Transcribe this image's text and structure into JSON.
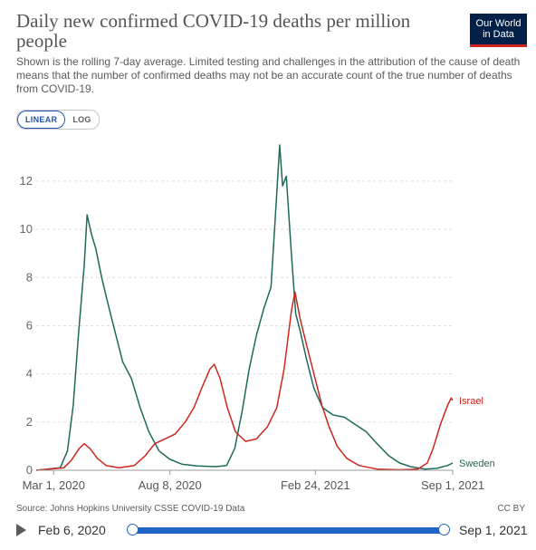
{
  "header": {
    "title": "Daily new confirmed COVID-19 deaths per million people",
    "subtitle": "Shown is the rolling 7-day average. Limited testing and challenges in the attribution of the cause of death means that the number of confirmed deaths may not be an accurate count of the true number of deaths from COVID-19.",
    "logo_line1": "Our World",
    "logo_line2": "in Data"
  },
  "scale_toggle": {
    "linear_label": "LINEAR",
    "log_label": "LOG",
    "selected": "LINEAR"
  },
  "footer": {
    "source": "Source: Johns Hopkins University CSSE COVID-19 Data",
    "license": "CC BY"
  },
  "timeline": {
    "start_label": "Feb 6, 2020",
    "end_label": "Sep 1, 2021",
    "colors": {
      "track": "#1f63c6",
      "play": "#5b5b5b"
    }
  },
  "chart_data": {
    "type": "line",
    "title": "Daily new confirmed COVID-19 deaths per million people",
    "xlabel": "",
    "ylabel": "",
    "xlim": [
      "2020-02-06",
      "2021-09-01"
    ],
    "ylim": [
      0,
      13.5
    ],
    "yticks": [
      0,
      2,
      4,
      6,
      8,
      10,
      12
    ],
    "xticks": [
      {
        "date": "2020-03-01",
        "label": "Mar 1, 2020"
      },
      {
        "date": "2020-08-08",
        "label": "Aug 8, 2020"
      },
      {
        "date": "2021-02-24",
        "label": "Feb 24, 2021"
      },
      {
        "date": "2021-09-01",
        "label": "Sep 1, 2021"
      }
    ],
    "grid": true,
    "legend": "end-of-line labels",
    "series": [
      {
        "name": "Sweden",
        "color": "#1e6a5a",
        "points": [
          [
            "2020-02-06",
            0
          ],
          [
            "2020-03-10",
            0.1
          ],
          [
            "2020-03-20",
            0.8
          ],
          [
            "2020-03-28",
            2.7
          ],
          [
            "2020-04-04",
            5.6
          ],
          [
            "2020-04-12",
            8.5
          ],
          [
            "2020-04-16",
            10.6
          ],
          [
            "2020-04-22",
            9.8
          ],
          [
            "2020-04-28",
            9.2
          ],
          [
            "2020-05-06",
            8.0
          ],
          [
            "2020-05-14",
            7.0
          ],
          [
            "2020-05-24",
            5.8
          ],
          [
            "2020-06-04",
            4.5
          ],
          [
            "2020-06-16",
            3.8
          ],
          [
            "2020-06-28",
            2.6
          ],
          [
            "2020-07-10",
            1.6
          ],
          [
            "2020-07-24",
            0.8
          ],
          [
            "2020-08-08",
            0.45
          ],
          [
            "2020-08-25",
            0.25
          ],
          [
            "2020-09-15",
            0.18
          ],
          [
            "2020-10-10",
            0.15
          ],
          [
            "2020-10-25",
            0.2
          ],
          [
            "2020-11-05",
            0.9
          ],
          [
            "2020-11-15",
            2.4
          ],
          [
            "2020-11-25",
            4.2
          ],
          [
            "2020-12-05",
            5.6
          ],
          [
            "2020-12-15",
            6.7
          ],
          [
            "2020-12-25",
            7.6
          ],
          [
            "2021-01-02",
            11.5
          ],
          [
            "2021-01-06",
            13.5
          ],
          [
            "2021-01-10",
            11.8
          ],
          [
            "2021-01-15",
            12.2
          ],
          [
            "2021-01-22",
            9.0
          ],
          [
            "2021-01-28",
            6.5
          ],
          [
            "2021-02-03",
            5.8
          ],
          [
            "2021-02-12",
            4.6
          ],
          [
            "2021-02-22",
            3.4
          ],
          [
            "2021-03-06",
            2.6
          ],
          [
            "2021-03-20",
            2.3
          ],
          [
            "2021-04-05",
            2.2
          ],
          [
            "2021-04-20",
            1.9
          ],
          [
            "2021-05-05",
            1.6
          ],
          [
            "2021-05-20",
            1.1
          ],
          [
            "2021-06-05",
            0.6
          ],
          [
            "2021-06-20",
            0.3
          ],
          [
            "2021-07-05",
            0.15
          ],
          [
            "2021-07-25",
            0.05
          ],
          [
            "2021-08-10",
            0.08
          ],
          [
            "2021-08-25",
            0.2
          ],
          [
            "2021-09-01",
            0.3
          ]
        ]
      },
      {
        "name": "Israel",
        "color": "#ce261e",
        "points": [
          [
            "2020-02-06",
            0
          ],
          [
            "2020-03-15",
            0.1
          ],
          [
            "2020-03-25",
            0.4
          ],
          [
            "2020-04-05",
            0.9
          ],
          [
            "2020-04-12",
            1.1
          ],
          [
            "2020-04-20",
            0.9
          ],
          [
            "2020-04-30",
            0.5
          ],
          [
            "2020-05-12",
            0.2
          ],
          [
            "2020-05-30",
            0.1
          ],
          [
            "2020-06-20",
            0.2
          ],
          [
            "2020-07-05",
            0.6
          ],
          [
            "2020-07-18",
            1.1
          ],
          [
            "2020-08-01",
            1.3
          ],
          [
            "2020-08-15",
            1.5
          ],
          [
            "2020-08-29",
            2.0
          ],
          [
            "2020-09-10",
            2.6
          ],
          [
            "2020-09-22",
            3.5
          ],
          [
            "2020-10-02",
            4.2
          ],
          [
            "2020-10-08",
            4.4
          ],
          [
            "2020-10-16",
            3.8
          ],
          [
            "2020-10-26",
            2.6
          ],
          [
            "2020-11-06",
            1.6
          ],
          [
            "2020-11-20",
            1.2
          ],
          [
            "2020-12-05",
            1.3
          ],
          [
            "2020-12-20",
            1.8
          ],
          [
            "2021-01-02",
            2.6
          ],
          [
            "2021-01-12",
            4.2
          ],
          [
            "2021-01-22",
            6.6
          ],
          [
            "2021-01-27",
            7.4
          ],
          [
            "2021-02-03",
            6.3
          ],
          [
            "2021-02-12",
            5.2
          ],
          [
            "2021-02-22",
            4.0
          ],
          [
            "2021-03-05",
            2.7
          ],
          [
            "2021-03-15",
            1.8
          ],
          [
            "2021-03-26",
            1.0
          ],
          [
            "2021-04-08",
            0.5
          ],
          [
            "2021-04-25",
            0.2
          ],
          [
            "2021-05-20",
            0.05
          ],
          [
            "2021-06-20",
            0.02
          ],
          [
            "2021-07-15",
            0.05
          ],
          [
            "2021-07-28",
            0.3
          ],
          [
            "2021-08-05",
            0.9
          ],
          [
            "2021-08-15",
            1.9
          ],
          [
            "2021-08-25",
            2.7
          ],
          [
            "2021-08-30",
            3.0
          ],
          [
            "2021-09-01",
            2.9
          ]
        ]
      }
    ]
  }
}
